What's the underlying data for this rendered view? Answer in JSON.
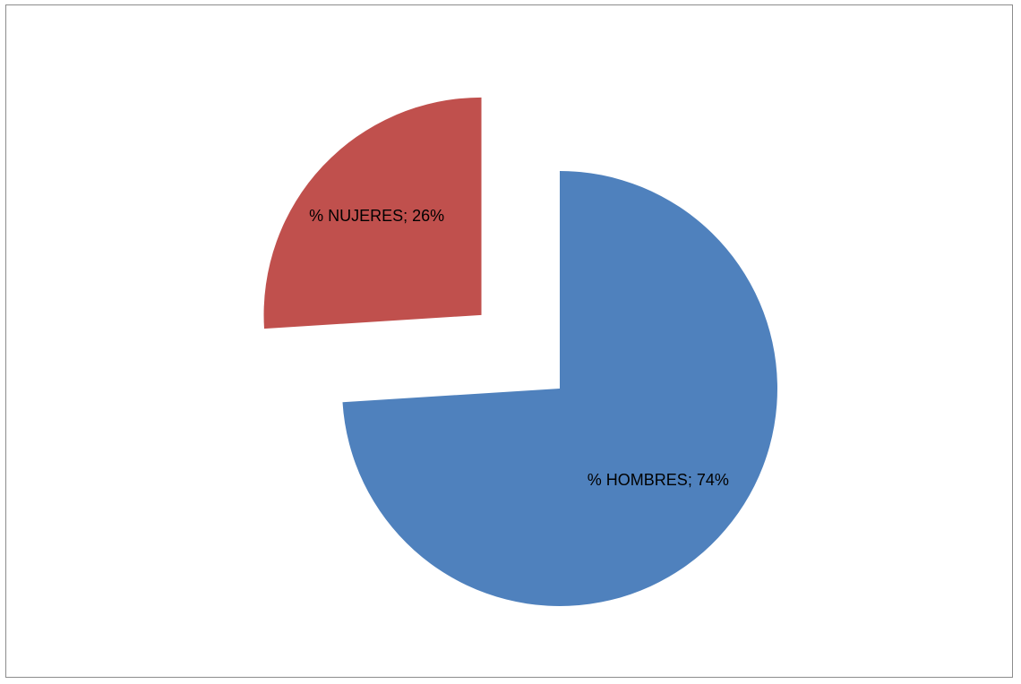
{
  "chart_data": {
    "type": "pie",
    "title": "",
    "slices": [
      {
        "label": "% HOMBRES",
        "value": 74,
        "value_text": "74%",
        "color": "#4F81BD",
        "exploded": false
      },
      {
        "label": "% NUJERES",
        "value": 26,
        "value_text": "26%",
        "color": "#C0504D",
        "exploded": true
      }
    ],
    "data_labels": [
      "% HOMBRES; 74%",
      "% NUJERES; 26%"
    ],
    "legend": "none",
    "start_angle_deg": 0,
    "direction": "clockwise"
  }
}
